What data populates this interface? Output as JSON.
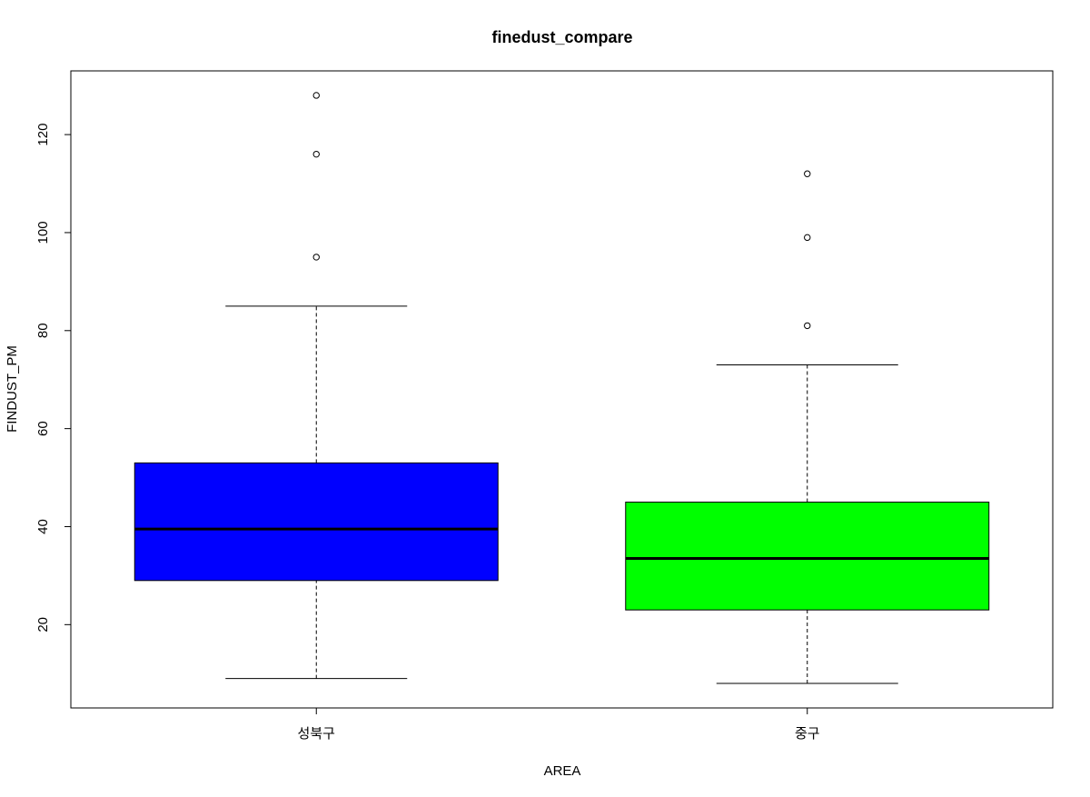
{
  "chart_data": {
    "type": "boxplot",
    "title": "finedust_compare",
    "xlabel": "AREA",
    "ylabel": "FINDUST_PM",
    "categories": [
      "성북구",
      "중구"
    ],
    "ylim": [
      3,
      133
    ],
    "yticks": [
      20,
      40,
      60,
      80,
      100,
      120
    ],
    "grid": false,
    "legend": "none",
    "boxes": [
      {
        "category": "성북구",
        "color": "#0000FF",
        "whisker_low": 9,
        "q1": 29,
        "median": 39.5,
        "q3": 53,
        "whisker_high": 85,
        "outliers": [
          95,
          116,
          128
        ]
      },
      {
        "category": "중구",
        "color": "#00FF00",
        "whisker_low": 8,
        "q1": 23,
        "median": 33.5,
        "q3": 45,
        "whisker_high": 73,
        "outliers": [
          81,
          99,
          112
        ]
      }
    ]
  }
}
